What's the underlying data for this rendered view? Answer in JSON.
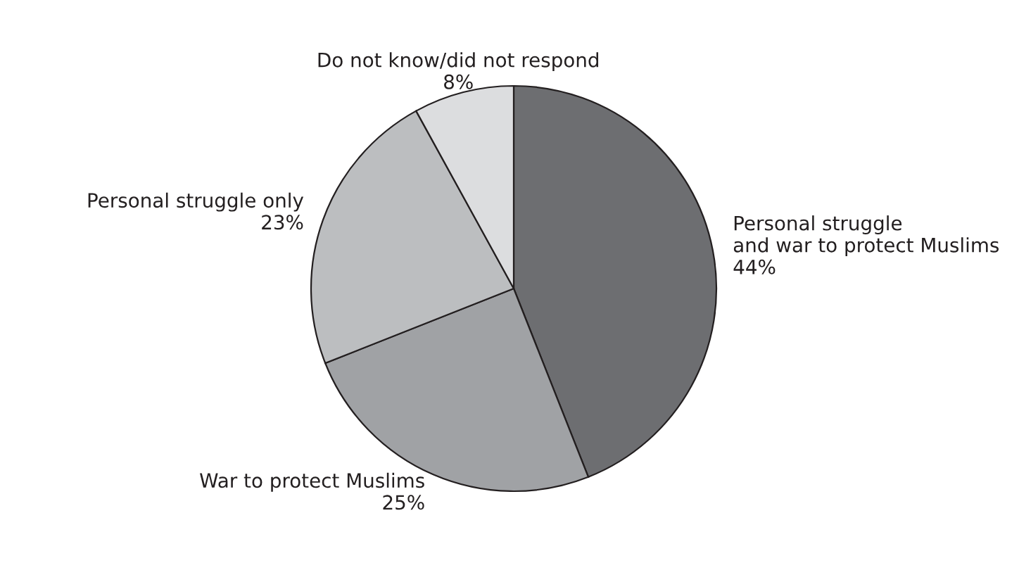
{
  "chart_data": {
    "type": "pie",
    "categories": [
      "Personal struggle\nand war to protect Muslims",
      "War to protect Muslims",
      "Personal struggle only",
      "Do not know/did not respond"
    ],
    "values": [
      44,
      25,
      23,
      8
    ],
    "colors": [
      "#6d6e71",
      "#a0a2a5",
      "#bcbec0",
      "#dcdddf"
    ],
    "value_labels": [
      "44%",
      "25%",
      "23%",
      "8%"
    ],
    "legend": false
  }
}
